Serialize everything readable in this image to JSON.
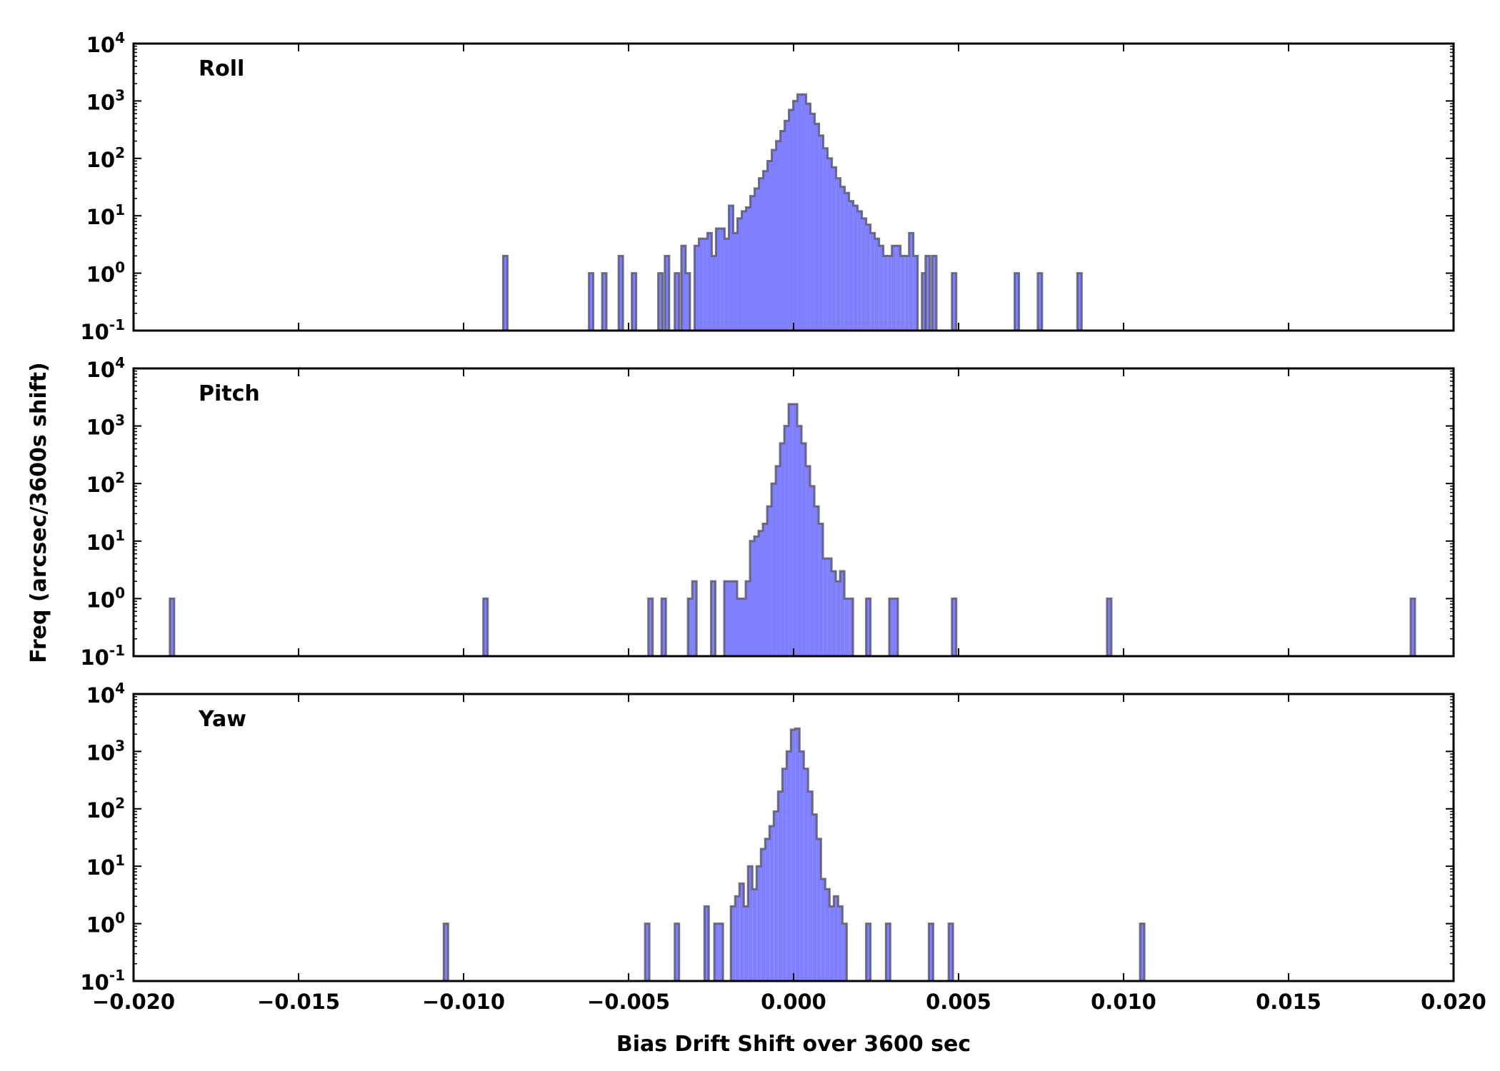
{
  "chart_data": {
    "type": "histogram",
    "xlabel": "Bias Drift Shift over 3600 sec",
    "ylabel": "Freq (arcsec/3600s shift)",
    "xlim": [
      -0.02,
      0.02
    ],
    "ylim": [
      0.1,
      10000
    ],
    "yscale": "log",
    "bin_width": 0.00013,
    "x_ticks": [
      "−0.020",
      "−0.015",
      "−0.010",
      "−0.005",
      "0.000",
      "0.005",
      "0.010",
      "0.015",
      "0.020"
    ],
    "x_tick_values": [
      -0.02,
      -0.015,
      -0.01,
      -0.005,
      0,
      0.005,
      0.01,
      0.015,
      0.02
    ],
    "y_tick_exponents": [
      "-1",
      "0",
      "1",
      "2",
      "3",
      "4"
    ],
    "y_tick_base": "10",
    "fill_color": "#8080ff",
    "edge_color": "#5a5a6e",
    "panels": [
      {
        "name": "Roll",
        "segments": [
          {
            "start": -0.0088,
            "counts": [
              2
            ]
          },
          {
            "start": -0.0062,
            "counts": [
              1
            ]
          },
          {
            "start": -0.0058,
            "counts": [
              1
            ]
          },
          {
            "start": -0.0053,
            "counts": [
              2
            ]
          },
          {
            "start": -0.0049,
            "counts": [
              1
            ]
          },
          {
            "start": -0.0041,
            "counts": [
              1
            ]
          },
          {
            "start": -0.0039,
            "counts": [
              2
            ]
          },
          {
            "start": -0.0036,
            "counts": [
              1
            ]
          },
          {
            "start": -0.0034,
            "counts": [
              3,
              1,
              0
            ]
          },
          {
            "start": -0.003,
            "counts": [
              3,
              4,
              4,
              5,
              2,
              6,
              6,
              4,
              15,
              5,
              9,
              12,
              14,
              22,
              30,
              45,
              60,
              90,
              140,
              200,
              300,
              450,
              700,
              1000,
              1300,
              1300,
              900,
              600,
              400,
              250,
              150,
              100,
              70,
              45,
              32,
              25,
              18,
              15,
              12,
              9,
              7,
              5,
              4,
              3,
              2,
              2,
              3,
              3,
              2,
              2,
              5,
              2,
              0,
              1
            ]
          },
          {
            "start": 0.004,
            "counts": [
              2
            ]
          },
          {
            "start": 0.0042,
            "counts": [
              2
            ]
          },
          {
            "start": 0.0048,
            "counts": [
              1
            ]
          },
          {
            "start": 0.0067,
            "counts": [
              1
            ]
          },
          {
            "start": 0.0074,
            "counts": [
              1
            ]
          },
          {
            "start": 0.0086,
            "counts": [
              1
            ]
          }
        ]
      },
      {
        "name": "Pitch",
        "segments": [
          {
            "start": -0.0189,
            "counts": [
              1
            ]
          },
          {
            "start": -0.0094,
            "counts": [
              1
            ]
          },
          {
            "start": -0.0044,
            "counts": [
              1
            ]
          },
          {
            "start": -0.004,
            "counts": [
              1
            ]
          },
          {
            "start": -0.0032,
            "counts": [
              1,
              2
            ]
          },
          {
            "start": -0.0025,
            "counts": [
              2
            ]
          },
          {
            "start": -0.0021,
            "counts": [
              2,
              2,
              2,
              1,
              1,
              2,
              10,
              12,
              15,
              20,
              40,
              100,
              200,
              500,
              1000,
              2400,
              2400,
              1000,
              500,
              200,
              90,
              40,
              20,
              5,
              5,
              3,
              2,
              3,
              1,
              1
            ]
          },
          {
            "start": 0.0022,
            "counts": [
              1
            ]
          },
          {
            "start": 0.0029,
            "counts": [
              1,
              1
            ]
          },
          {
            "start": 0.0048,
            "counts": [
              1
            ]
          },
          {
            "start": 0.0095,
            "counts": [
              1
            ]
          },
          {
            "start": 0.0187,
            "counts": [
              1
            ]
          }
        ]
      },
      {
        "name": "Yaw",
        "segments": [
          {
            "start": -0.0106,
            "counts": [
              1
            ]
          },
          {
            "start": -0.0045,
            "counts": [
              1
            ]
          },
          {
            "start": -0.0036,
            "counts": [
              1
            ]
          },
          {
            "start": -0.0027,
            "counts": [
              2
            ]
          },
          {
            "start": -0.0024,
            "counts": [
              1,
              1
            ]
          },
          {
            "start": -0.0019,
            "counts": [
              2,
              3,
              5,
              2,
              10,
              4,
              10,
              20,
              30,
              50,
              90,
              200,
              500,
              1000,
              2400,
              2500,
              1000,
              500,
              200,
              80,
              30,
              6,
              4,
              2,
              3,
              2,
              1,
              0,
              0,
              0
            ]
          },
          {
            "start": 0.0022,
            "counts": [
              1
            ]
          },
          {
            "start": 0.0028,
            "counts": [
              1
            ]
          },
          {
            "start": 0.0041,
            "counts": [
              1
            ]
          },
          {
            "start": 0.0047,
            "counts": [
              1
            ]
          },
          {
            "start": 0.0105,
            "counts": [
              1
            ]
          }
        ]
      }
    ]
  }
}
